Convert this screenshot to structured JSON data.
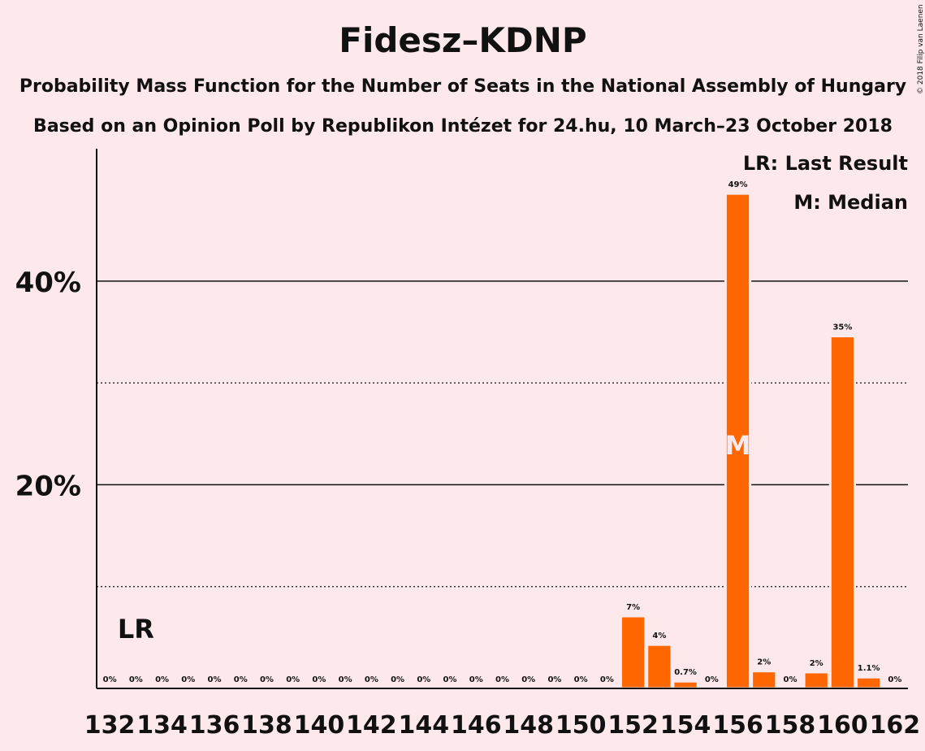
{
  "chart_data": {
    "type": "bar",
    "title": "Fidesz–KDNP",
    "subtitle": [
      "Probability Mass Function for the Number of Seats in the National Assembly of Hungary",
      "Based on an Opinion Poll by Republikon Intézet for 24.hu, 10 March–23 October 2018"
    ],
    "copyright": "© 2018 Filip van Laenen",
    "x": [
      132,
      133,
      134,
      135,
      136,
      137,
      138,
      139,
      140,
      141,
      142,
      143,
      144,
      145,
      146,
      147,
      148,
      149,
      150,
      151,
      152,
      153,
      154,
      155,
      156,
      157,
      158,
      159,
      160,
      161,
      162
    ],
    "values": [
      0,
      0,
      0,
      0,
      0,
      0,
      0,
      0,
      0,
      0,
      0,
      0,
      0,
      0,
      0,
      0,
      0,
      0,
      0,
      0,
      7.1,
      4.3,
      0.7,
      0,
      48.6,
      1.7,
      0,
      1.6,
      34.6,
      1.1,
      0
    ],
    "value_labels": [
      "0%",
      "0%",
      "0%",
      "0%",
      "0%",
      "0%",
      "0%",
      "0%",
      "0%",
      "0%",
      "0%",
      "0%",
      "0%",
      "0%",
      "0%",
      "0%",
      "0%",
      "0%",
      "0%",
      "0%",
      "7%",
      "4%",
      "0.7%",
      "0%",
      "49%",
      "2%",
      "0%",
      "2%",
      "35%",
      "1.1%",
      "0%"
    ],
    "color": "#ff6600",
    "xlim": [
      131.5,
      162.5
    ],
    "xticks": [
      132,
      134,
      136,
      138,
      140,
      142,
      144,
      146,
      148,
      150,
      152,
      154,
      156,
      158,
      160,
      162
    ],
    "ylim": [
      0,
      53
    ],
    "yticks": [
      {
        "value": 20,
        "label": "20%"
      },
      {
        "value": 40,
        "label": "40%"
      }
    ],
    "minor_yticks": [
      10,
      30
    ],
    "last_result": {
      "label": "LR",
      "seat": 133
    },
    "median": {
      "label": "M",
      "seat": 156
    },
    "legend": [
      "LR: Last Result",
      "M: Median"
    ]
  }
}
